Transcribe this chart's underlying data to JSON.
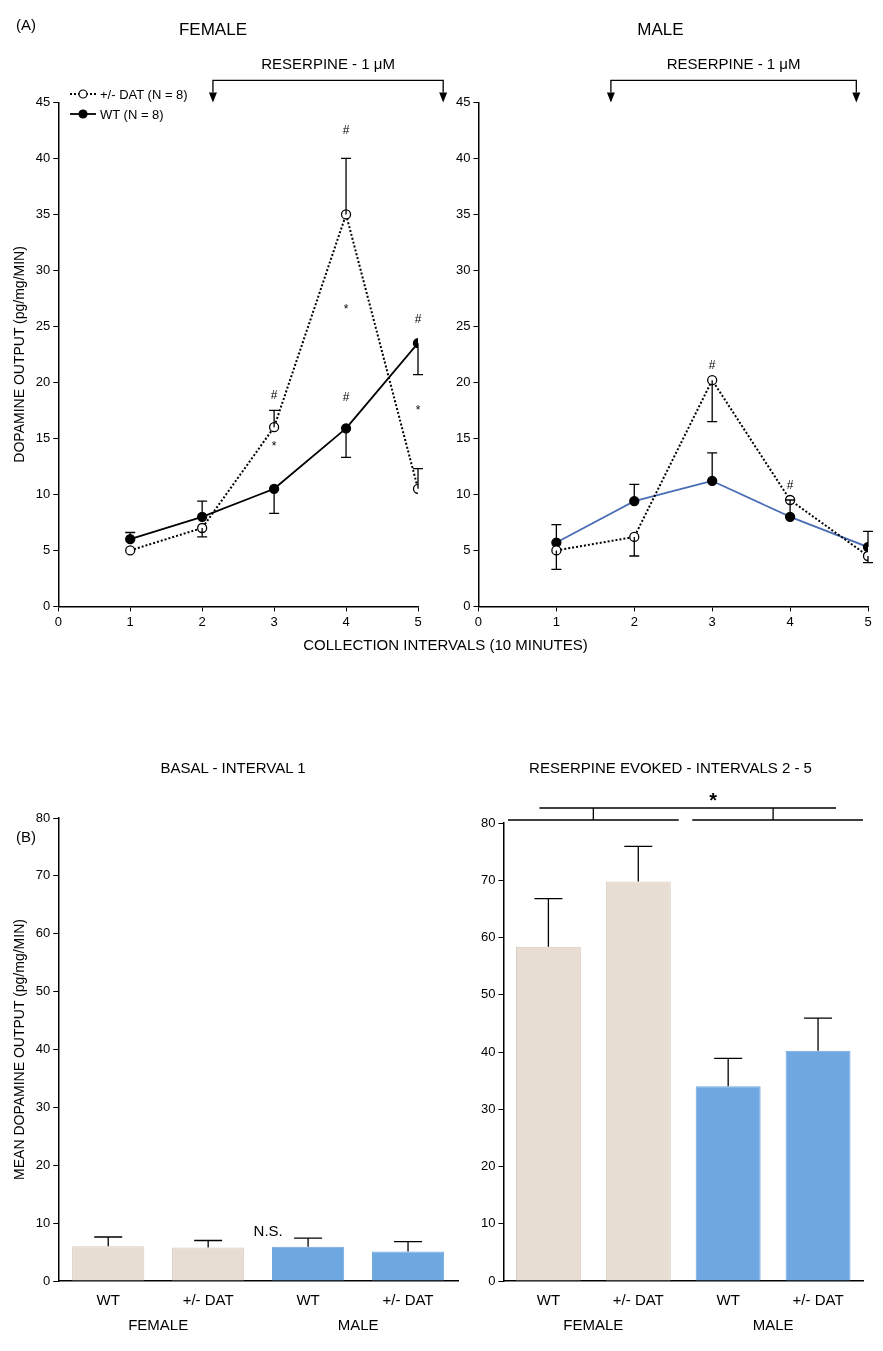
{
  "chart_data": [
    {
      "type": "line",
      "title": "FEMALE",
      "ylabel": "DOPAMINE OUTPUT (pg/mg/MIN)",
      "xlabel": "COLLECTION INTERVALS (10 MINUTES)",
      "x": [
        1,
        2,
        3,
        4,
        5
      ],
      "xlim": [
        0,
        5
      ],
      "xticks": [
        0,
        1,
        2,
        3,
        4,
        5
      ],
      "ylim": [
        0,
        45
      ],
      "yticks": [
        0,
        5,
        10,
        15,
        20,
        25,
        30,
        35,
        40,
        45
      ],
      "series": [
        {
          "name": "+/- DAT (N = 8)",
          "color": "#000000",
          "line_style": "dotted",
          "marker": "circle",
          "values": [
            5.0,
            7.0,
            16.0,
            35.0,
            10.5
          ],
          "errors": [
            null,
            [
              6.2,
              7.0
            ],
            [
              16.0,
              17.5
            ],
            [
              35.0,
              40.0
            ],
            [
              10.5,
              12.3
            ]
          ]
        },
        {
          "name": "WT (N = 8)",
          "color": "#000000",
          "line_style": "solid",
          "marker": "circle",
          "values": [
            6.0,
            8.0,
            10.5,
            15.9,
            23.5
          ],
          "errors": [
            [
              6.0,
              6.6
            ],
            [
              8.0,
              9.4
            ],
            [
              8.3,
              10.5
            ],
            [
              13.3,
              15.9
            ],
            [
              20.7,
              23.5
            ]
          ]
        }
      ],
      "legend": "top left",
      "grid": false,
      "annotations": [
        "(A)",
        "RESERPINE - 1 μM",
        "#",
        "*",
        "#",
        "*",
        "#",
        "#",
        "*"
      ]
    },
    {
      "type": "line",
      "title": "MALE",
      "x": [
        1,
        2,
        3,
        4,
        5
      ],
      "xlim": [
        0,
        5
      ],
      "xticks": [
        0,
        1,
        2,
        3,
        4,
        5
      ],
      "ylim": [
        0,
        45
      ],
      "yticks": [
        0,
        5,
        10,
        15,
        20,
        25,
        30,
        35,
        40,
        45
      ],
      "series": [
        {
          "color": "#000000",
          "line_style": "dotted",
          "marker": "circle",
          "values": [
            5.0,
            6.2,
            20.2,
            9.5,
            4.5
          ],
          "errors": [
            [
              3.3,
              5.0
            ],
            [
              4.5,
              6.2
            ],
            [
              16.5,
              20.2
            ],
            null,
            [
              3.9,
              4.5
            ]
          ]
        },
        {
          "color": "#4a6db5",
          "line_style": "solid",
          "marker": "circle",
          "values": [
            5.7,
            9.4,
            11.2,
            8.0,
            5.3
          ],
          "errors": [
            [
              5.7,
              7.3
            ],
            [
              9.4,
              10.9
            ],
            [
              11.2,
              13.7
            ],
            [
              8.0,
              9.5
            ],
            [
              5.3,
              6.7
            ]
          ]
        }
      ],
      "grid": false,
      "annotations": [
        "RESERPINE - 1 μM",
        "#",
        "#"
      ]
    },
    {
      "type": "bar",
      "title": "BASAL - INTERVAL 1",
      "ylabel": "MEAN DOPAMINE OUTPUT (pg/mg/MIN)",
      "categories": [
        "WT",
        "+/- DAT",
        "WT",
        "+/- DAT"
      ],
      "values": [
        6.0,
        5.8,
        5.9,
        5.1
      ],
      "colors": [
        "#e8ddd3",
        "#e8ddd3",
        "#6fa8e0",
        "#6fa8e0"
      ],
      "errors": [
        [
          6.0,
          7.6
        ],
        [
          5.8,
          7.0
        ],
        [
          5.9,
          7.4
        ],
        [
          5.1,
          6.8
        ]
      ],
      "ylim": [
        0,
        80
      ],
      "yticks": [
        0,
        10,
        20,
        30,
        40,
        50,
        60,
        70,
        80
      ],
      "grid": false,
      "annotations": [
        "(B)",
        "N.S.",
        "FEMALE",
        "MALE"
      ]
    },
    {
      "type": "bar",
      "title": "RESERPINE EVOKED - INTERVALS 2 - 5",
      "categories": [
        "WT",
        "+/- DAT",
        "WT",
        "+/- DAT"
      ],
      "values": [
        58.4,
        69.8,
        34.0,
        40.2
      ],
      "colors": [
        "#e8ddd3",
        "#e8ddd3",
        "#6fa8e0",
        "#6fa8e0"
      ],
      "errors": [
        [
          58.4,
          66.8
        ],
        [
          69.8,
          75.9
        ],
        [
          34.0,
          38.9
        ],
        [
          40.2,
          45.9
        ]
      ],
      "ylim": [
        0,
        80
      ],
      "yticks": [
        0,
        10,
        20,
        30,
        40,
        50,
        60,
        70,
        80
      ],
      "grid": false,
      "annotations": [
        "*",
        "FEMALE",
        "MALE"
      ]
    }
  ]
}
